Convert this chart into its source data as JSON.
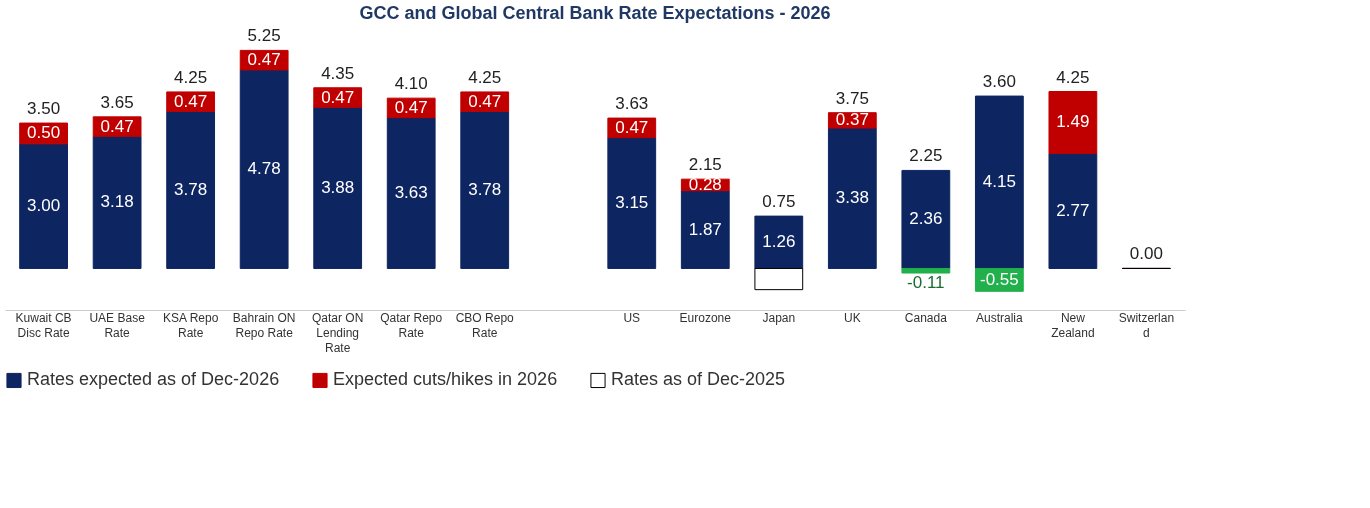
{
  "chart_data": {
    "type": "bar",
    "title": "GCC and Global Central Bank Rate Expectations - 2026",
    "categories": [
      "Kuwait CB Disc Rate",
      "UAE Base Rate",
      "KSA Repo Rate",
      "Bahrain ON Repo Rate",
      "Qatar ON Lending Rate",
      "Qatar Repo Rate",
      "CBO Repo Rate",
      null,
      "US",
      "Eurozone",
      "Japan",
      "UK",
      "Canada",
      "Australia",
      "New Zealand",
      "Switzerland"
    ],
    "stacked": true,
    "series": [
      {
        "name": "Rates expected as of Dec-2026",
        "color": "#0d2560",
        "values": [
          3.0,
          3.18,
          3.78,
          4.78,
          3.88,
          3.63,
          3.78,
          null,
          3.15,
          1.87,
          1.26,
          3.38,
          2.36,
          4.15,
          2.77,
          0.0
        ],
        "value_labels": [
          "3.00",
          "3.18",
          "3.78",
          "4.78",
          "3.88",
          "3.63",
          "3.78",
          null,
          "3.15",
          "1.87",
          "1.26",
          "3.38",
          "2.36",
          "4.15",
          "2.77",
          null
        ]
      },
      {
        "name": "Expected cuts/hikes in 2026",
        "color": "#c00000",
        "values": [
          0.5,
          0.47,
          0.47,
          0.47,
          0.47,
          0.47,
          0.47,
          null,
          0.47,
          0.28,
          null,
          0.37,
          null,
          null,
          1.49,
          0.0
        ],
        "value_labels": [
          "0.50",
          "0.47",
          "0.47",
          "0.47",
          "0.47",
          "0.47",
          "0.47",
          null,
          "0.47",
          "0.28",
          null,
          "0.37",
          null,
          null,
          "1.49",
          null
        ]
      },
      {
        "name": "Rates as of Dec-2025",
        "color": "#ffffff",
        "values": [
          null,
          null,
          null,
          null,
          null,
          null,
          null,
          null,
          null,
          null,
          -0.51,
          null,
          null,
          null,
          null,
          0.0
        ]
      },
      {
        "color": "#21b04b",
        "values": [
          null,
          null,
          null,
          null,
          null,
          null,
          null,
          null,
          null,
          null,
          null,
          null,
          -0.11,
          -0.55,
          null,
          null
        ],
        "value_labels": [
          null,
          null,
          null,
          null,
          null,
          null,
          null,
          null,
          null,
          null,
          null,
          null,
          "-0.11",
          "-0.55",
          null,
          null
        ]
      }
    ],
    "totals": [
      "3.50",
      "3.65",
      "4.25",
      "5.25",
      "4.35",
      "4.10",
      "4.25",
      null,
      "3.63",
      "2.15",
      "0.75",
      "3.75",
      "2.25",
      "3.60",
      "4.25",
      "0.00"
    ],
    "tick_labels": "x",
    "grid": false,
    "legend": "bottom"
  }
}
